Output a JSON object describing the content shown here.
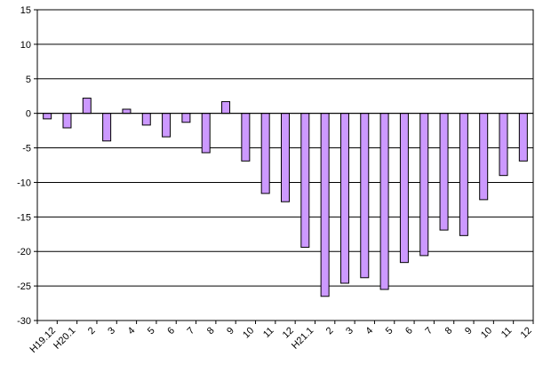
{
  "chart_data": {
    "type": "bar",
    "title": "",
    "xlabel": "",
    "ylabel": "",
    "ylim": [
      -30,
      15
    ],
    "yticks": [
      15,
      10,
      5,
      0,
      -5,
      -10,
      -15,
      -20,
      -25,
      -30
    ],
    "grid": true,
    "categories": [
      "H19.12",
      "H20.1",
      "2",
      "3",
      "4",
      "5",
      "6",
      "7",
      "8",
      "9",
      "10",
      "11",
      "12",
      "H21.1",
      "2",
      "3",
      "4",
      "5",
      "6",
      "7",
      "8",
      "9",
      "10",
      "11",
      "12"
    ],
    "values": [
      -0.8,
      -2.1,
      2.2,
      -4.0,
      0.6,
      -1.7,
      -3.4,
      -1.3,
      -5.7,
      1.7,
      -6.9,
      -11.6,
      -12.8,
      -19.4,
      -26.5,
      -24.6,
      -23.8,
      -25.5,
      -21.6,
      -20.6,
      -16.9,
      -17.7,
      -12.5,
      -9.0,
      -6.9
    ],
    "colors": {
      "bar_fill": "#cc99ff",
      "bar_stroke": "#000000",
      "grid": "#000000"
    }
  }
}
